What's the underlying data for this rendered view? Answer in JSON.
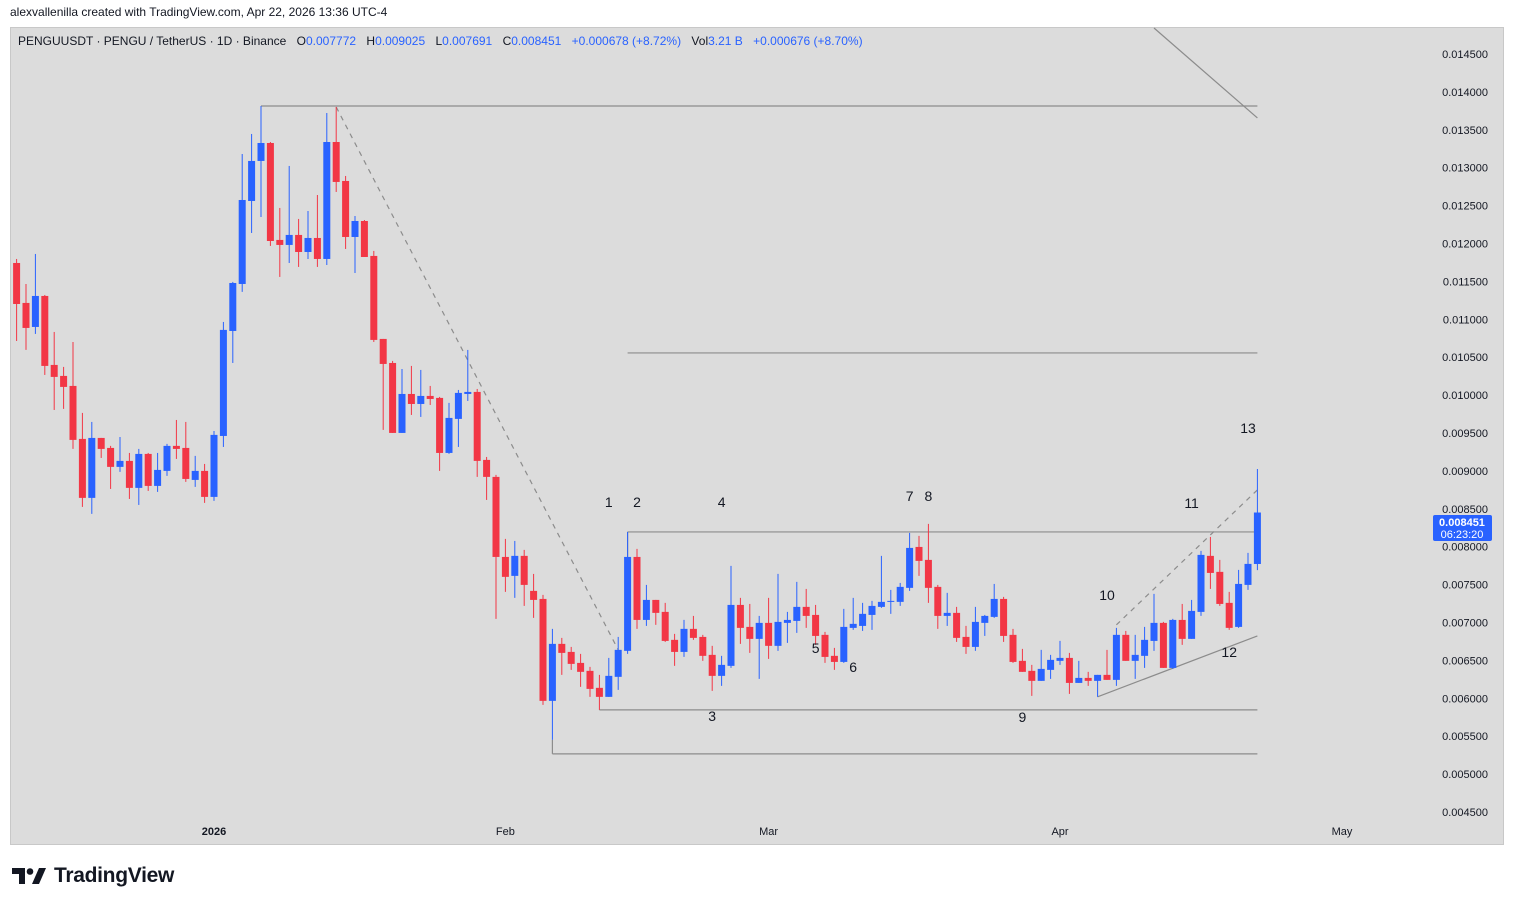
{
  "credit": "alexvallenilla created with TradingView.com, Apr 22, 2026 13:36 UTC-4",
  "legend": {
    "symbol": "PENGUUSDT · PENGU / TetherUS · 1D · Binance",
    "open_label": "O",
    "open": "0.007772",
    "high_label": "H",
    "high": "0.009025",
    "low_label": "L",
    "low": "0.007691",
    "close_label": "C",
    "close": "0.008451",
    "change": "+0.000678 (+8.72%)",
    "vol_label": "Vol",
    "vol": "3.21 B",
    "vol_change": "+0.000676 (+8.70%)"
  },
  "price_badge": {
    "price": "0.008451",
    "countdown": "06:23:20",
    "color": "#2962ff"
  },
  "logo": {
    "text": "TradingView"
  },
  "chart_data": {
    "type": "candlestick",
    "interval": "1D",
    "colors": {
      "up": "#2962ff",
      "down": "#f23645",
      "background": "#dcdcdc",
      "drawing": "#8c8c8c"
    },
    "ylim": [
      0.0043,
      0.0149
    ],
    "y_ticks": [
      "0.014500",
      "0.014000",
      "0.013500",
      "0.013000",
      "0.012500",
      "0.012000",
      "0.011500",
      "0.011000",
      "0.010500",
      "0.010000",
      "0.009500",
      "0.009000",
      "0.008500",
      "0.008000",
      "0.007500",
      "0.007000",
      "0.006500",
      "0.006000",
      "0.005500",
      "0.005000",
      "0.004500"
    ],
    "x_ticks": [
      {
        "label": "2026",
        "date": "2026-01-01"
      },
      {
        "label": "Feb",
        "date": "2026-02-01"
      },
      {
        "label": "Mar",
        "date": "2026-03-01"
      },
      {
        "label": "Apr",
        "date": "2026-04-01"
      },
      {
        "label": "May",
        "date": "2026-05-01"
      }
    ],
    "candles_columns": [
      "date",
      "open",
      "high",
      "low",
      "close"
    ],
    "candles": [
      [
        "2025-12-11",
        0.011743,
        0.011796,
        0.010714,
        0.011202
      ],
      [
        "2025-12-12",
        0.011216,
        0.011466,
        0.010596,
        0.010886
      ],
      [
        "2025-12-13",
        0.010899,
        0.011862,
        0.010807,
        0.011308
      ],
      [
        "2025-12-14",
        0.011308,
        0.011321,
        0.010266,
        0.010385
      ],
      [
        "2025-12-15",
        0.010398,
        0.010833,
        0.009804,
        0.01024
      ],
      [
        "2025-12-16",
        0.010253,
        0.010372,
        0.009818,
        0.010108
      ],
      [
        "2025-12-17",
        0.010121,
        0.010701,
        0.00929,
        0.009409
      ],
      [
        "2025-12-18",
        0.009422,
        0.009765,
        0.008525,
        0.008644
      ],
      [
        "2025-12-19",
        0.008644,
        0.009646,
        0.008433,
        0.009435
      ],
      [
        "2025-12-20",
        0.009435,
        0.009435,
        0.009171,
        0.00929
      ],
      [
        "2025-12-21",
        0.009303,
        0.00933,
        0.008762,
        0.009053
      ],
      [
        "2025-12-22",
        0.009053,
        0.009448,
        0.008987,
        0.009132
      ],
      [
        "2025-12-23",
        0.009132,
        0.009237,
        0.00863,
        0.008776
      ],
      [
        "2025-12-24",
        0.008776,
        0.00929,
        0.008551,
        0.009224
      ],
      [
        "2025-12-25",
        0.009224,
        0.009237,
        0.008736,
        0.008802
      ],
      [
        "2025-12-26",
        0.008802,
        0.009237,
        0.008723,
        0.009013
      ],
      [
        "2025-12-27",
        0.009,
        0.009356,
        0.008934,
        0.00933
      ],
      [
        "2025-12-28",
        0.00933,
        0.009672,
        0.009158,
        0.00929
      ],
      [
        "2025-12-29",
        0.009303,
        0.009646,
        0.008855,
        0.008894
      ],
      [
        "2025-12-30",
        0.008881,
        0.009198,
        0.008789,
        0.009
      ],
      [
        "2025-12-31",
        0.009,
        0.009092,
        0.008578,
        0.008657
      ],
      [
        "2026-01-01",
        0.008657,
        0.009527,
        0.008604,
        0.009475
      ],
      [
        "2026-01-02",
        0.009461,
        0.010965,
        0.009316,
        0.01086
      ],
      [
        "2026-01-03",
        0.010846,
        0.011493,
        0.010424,
        0.011479
      ],
      [
        "2026-01-04",
        0.011466,
        0.013181,
        0.011361,
        0.012574
      ],
      [
        "2026-01-05",
        0.012561,
        0.013445,
        0.012139,
        0.013089
      ],
      [
        "2026-01-06",
        0.013089,
        0.013814,
        0.01235,
        0.013326
      ],
      [
        "2026-01-07",
        0.013326,
        0.013339,
        0.011968,
        0.012033
      ],
      [
        "2026-01-08",
        0.012047,
        0.012469,
        0.011559,
        0.011981
      ],
      [
        "2026-01-09",
        0.011981,
        0.013023,
        0.011743,
        0.012113
      ],
      [
        "2026-01-10",
        0.012113,
        0.012324,
        0.011691,
        0.011888
      ],
      [
        "2026-01-11",
        0.011888,
        0.012429,
        0.011796,
        0.012073
      ],
      [
        "2026-01-12",
        0.012073,
        0.01264,
        0.011691,
        0.011796
      ],
      [
        "2026-01-13",
        0.011796,
        0.013722,
        0.011717,
        0.013339
      ],
      [
        "2026-01-14",
        0.013339,
        0.013801,
        0.01268,
        0.012812
      ],
      [
        "2026-01-15",
        0.012825,
        0.012891,
        0.011928,
        0.012086
      ],
      [
        "2026-01-16",
        0.012086,
        0.012363,
        0.011611,
        0.012297
      ],
      [
        "2026-01-17",
        0.012297,
        0.01231,
        0.011822,
        0.011822
      ],
      [
        "2026-01-18",
        0.011836,
        0.011902,
        0.010701,
        0.010728
      ],
      [
        "2026-01-19",
        0.010741,
        0.010741,
        0.009541,
        0.010411
      ],
      [
        "2026-01-20",
        0.010424,
        0.010451,
        0.009501,
        0.009501
      ],
      [
        "2026-01-21",
        0.009501,
        0.010345,
        0.009501,
        0.010015
      ],
      [
        "2026-01-22",
        0.010015,
        0.010385,
        0.009738,
        0.009883
      ],
      [
        "2026-01-23",
        0.009883,
        0.010332,
        0.009712,
        0.009989
      ],
      [
        "2026-01-24",
        0.009989,
        0.010121,
        0.00987,
        0.009949
      ],
      [
        "2026-01-25",
        0.009963,
        0.009976,
        0.009,
        0.009237
      ],
      [
        "2026-01-26",
        0.009237,
        0.009897,
        0.009224,
        0.009699
      ],
      [
        "2026-01-27",
        0.009686,
        0.010068,
        0.009316,
        0.010029
      ],
      [
        "2026-01-28",
        0.010015,
        0.010596,
        0.009923,
        0.010042
      ],
      [
        "2026-01-29",
        0.010042,
        0.010081,
        0.008921,
        0.009132
      ],
      [
        "2026-01-30",
        0.009145,
        0.009184,
        0.008617,
        0.008921
      ],
      [
        "2026-01-31",
        0.008921,
        0.008947,
        0.007048,
        0.007865
      ],
      [
        "2026-02-01",
        0.007865,
        0.008103,
        0.007404,
        0.007602
      ],
      [
        "2026-02-02",
        0.007615,
        0.008076,
        0.007325,
        0.007879
      ],
      [
        "2026-02-03",
        0.007879,
        0.007958,
        0.007219,
        0.007496
      ],
      [
        "2026-02-04",
        0.007417,
        0.007641,
        0.007061,
        0.007298
      ],
      [
        "2026-02-05",
        0.007311,
        0.007364,
        0.005913,
        0.005966
      ],
      [
        "2026-02-06",
        0.005966,
        0.006916,
        0.005452,
        0.006718
      ],
      [
        "2026-02-07",
        0.006718,
        0.006797,
        0.006309,
        0.006599
      ],
      [
        "2026-02-08",
        0.006612,
        0.006678,
        0.006375,
        0.006454
      ],
      [
        "2026-02-09",
        0.006467,
        0.006586,
        0.006151,
        0.006349
      ],
      [
        "2026-02-10",
        0.006362,
        0.006415,
        0.006019,
        0.006124
      ],
      [
        "2026-02-11",
        0.006138,
        0.006309,
        0.005847,
        0.006019
      ],
      [
        "2026-02-12",
        0.006019,
        0.006533,
        0.006019,
        0.006296
      ],
      [
        "2026-02-13",
        0.006283,
        0.00681,
        0.006111,
        0.006639
      ],
      [
        "2026-02-14",
        0.006626,
        0.008195,
        0.006586,
        0.007865
      ],
      [
        "2026-02-15",
        0.007865,
        0.007971,
        0.006916,
        0.007034
      ],
      [
        "2026-02-16",
        0.007034,
        0.007496,
        0.006955,
        0.007298
      ],
      [
        "2026-02-17",
        0.007298,
        0.007298,
        0.006969,
        0.007127
      ],
      [
        "2026-02-18",
        0.00714,
        0.007259,
        0.006744,
        0.006757
      ],
      [
        "2026-02-19",
        0.006771,
        0.00685,
        0.006428,
        0.006612
      ],
      [
        "2026-02-20",
        0.006612,
        0.007034,
        0.006546,
        0.006916
      ],
      [
        "2026-02-21",
        0.006916,
        0.007087,
        0.006771,
        0.006797
      ],
      [
        "2026-02-22",
        0.00681,
        0.006837,
        0.006494,
        0.00656
      ],
      [
        "2026-02-23",
        0.006573,
        0.006692,
        0.006098,
        0.006296
      ],
      [
        "2026-02-24",
        0.006296,
        0.00656,
        0.006164,
        0.006441
      ],
      [
        "2026-02-25",
        0.006428,
        0.007747,
        0.006401,
        0.007232
      ],
      [
        "2026-02-26",
        0.007232,
        0.007325,
        0.006718,
        0.006929
      ],
      [
        "2026-02-27",
        0.006942,
        0.007245,
        0.006599,
        0.006784
      ],
      [
        "2026-02-28",
        0.006784,
        0.007087,
        0.006256,
        0.006995
      ],
      [
        "2026-03-01",
        0.006995,
        0.007325,
        0.00652,
        0.006692
      ],
      [
        "2026-03-02",
        0.006692,
        0.007641,
        0.006626,
        0.007008
      ],
      [
        "2026-03-03",
        0.006995,
        0.00714,
        0.006731,
        0.007034
      ],
      [
        "2026-03-04",
        0.007021,
        0.007536,
        0.006863,
        0.007206
      ],
      [
        "2026-03-05",
        0.007206,
        0.007443,
        0.006929,
        0.007087
      ],
      [
        "2026-03-06",
        0.0071,
        0.007232,
        0.006705,
        0.006823
      ],
      [
        "2026-03-07",
        0.006837,
        0.006876,
        0.006467,
        0.006546
      ],
      [
        "2026-03-08",
        0.00656,
        0.006665,
        0.006375,
        0.00648
      ],
      [
        "2026-03-09",
        0.00648,
        0.00718,
        0.006467,
        0.006942
      ],
      [
        "2026-03-10",
        0.006929,
        0.007325,
        0.006903,
        0.006982
      ],
      [
        "2026-03-11",
        0.006955,
        0.007259,
        0.006889,
        0.007114
      ],
      [
        "2026-03-12",
        0.0071,
        0.007285,
        0.006903,
        0.007219
      ],
      [
        "2026-03-13",
        0.007206,
        0.007879,
        0.007193,
        0.007272
      ],
      [
        "2026-03-14",
        0.007272,
        0.00743,
        0.007114,
        0.007285
      ],
      [
        "2026-03-15",
        0.007272,
        0.007522,
        0.007219,
        0.00747
      ],
      [
        "2026-03-16",
        0.007457,
        0.008182,
        0.007417,
        0.007984
      ],
      [
        "2026-03-17",
        0.007997,
        0.008142,
        0.007615,
        0.007813
      ],
      [
        "2026-03-18",
        0.007826,
        0.008301,
        0.007259,
        0.007457
      ],
      [
        "2026-03-19",
        0.00747,
        0.007496,
        0.006916,
        0.007087
      ],
      [
        "2026-03-20",
        0.007087,
        0.007391,
        0.006955,
        0.007127
      ],
      [
        "2026-03-21",
        0.007127,
        0.007206,
        0.006744,
        0.006797
      ],
      [
        "2026-03-22",
        0.00681,
        0.006955,
        0.006586,
        0.006678
      ],
      [
        "2026-03-23",
        0.006678,
        0.007206,
        0.006626,
        0.007008
      ],
      [
        "2026-03-24",
        0.006995,
        0.0071,
        0.006823,
        0.007087
      ],
      [
        "2026-03-25",
        0.007074,
        0.007509,
        0.007061,
        0.007311
      ],
      [
        "2026-03-26",
        0.007311,
        0.007338,
        0.006744,
        0.006823
      ],
      [
        "2026-03-27",
        0.006837,
        0.006916,
        0.006467,
        0.00648
      ],
      [
        "2026-03-28",
        0.006494,
        0.006652,
        0.006349,
        0.006349
      ],
      [
        "2026-03-29",
        0.006362,
        0.006441,
        0.006032,
        0.00623
      ],
      [
        "2026-03-30",
        0.00623,
        0.006639,
        0.00623,
        0.006388
      ],
      [
        "2026-03-31",
        0.006375,
        0.006573,
        0.006256,
        0.006507
      ],
      [
        "2026-04-01",
        0.006494,
        0.006757,
        0.006441,
        0.006533
      ],
      [
        "2026-04-02",
        0.006533,
        0.006599,
        0.006058,
        0.006203
      ],
      [
        "2026-04-03",
        0.006203,
        0.006494,
        0.006203,
        0.006269
      ],
      [
        "2026-04-04",
        0.006269,
        0.006349,
        0.006164,
        0.00623
      ],
      [
        "2026-04-05",
        0.00623,
        0.006309,
        0.006019,
        0.006309
      ],
      [
        "2026-04-06",
        0.006309,
        0.006639,
        0.006243,
        0.006243
      ],
      [
        "2026-04-07",
        0.006243,
        0.006929,
        0.006164,
        0.006837
      ],
      [
        "2026-04-08",
        0.006837,
        0.006889,
        0.006494,
        0.006494
      ],
      [
        "2026-04-09",
        0.006494,
        0.006837,
        0.006256,
        0.006573
      ],
      [
        "2026-04-10",
        0.00656,
        0.006942,
        0.006401,
        0.006771
      ],
      [
        "2026-04-11",
        0.006757,
        0.007377,
        0.006626,
        0.006995
      ],
      [
        "2026-04-12",
        0.006995,
        0.007008,
        0.006401,
        0.006401
      ],
      [
        "2026-04-13",
        0.006401,
        0.007048,
        0.006388,
        0.007034
      ],
      [
        "2026-04-14",
        0.007034,
        0.007245,
        0.006705,
        0.006784
      ],
      [
        "2026-04-15",
        0.006784,
        0.007298,
        0.006784,
        0.007153
      ],
      [
        "2026-04-16",
        0.00714,
        0.007945,
        0.007087,
        0.007892
      ],
      [
        "2026-04-17",
        0.007879,
        0.008129,
        0.007443,
        0.007654
      ],
      [
        "2026-04-18",
        0.007668,
        0.007826,
        0.007219,
        0.007245
      ],
      [
        "2026-04-19",
        0.007259,
        0.007404,
        0.006903,
        0.006929
      ],
      [
        "2026-04-20",
        0.006942,
        0.007694,
        0.006929,
        0.007509
      ],
      [
        "2026-04-21",
        0.007496,
        0.007918,
        0.00743,
        0.007773
      ],
      [
        "2026-04-22",
        0.007772,
        0.009025,
        0.007691,
        0.008451
      ]
    ],
    "drawings": [
      {
        "kind": "horizontal",
        "style": "solid",
        "from": [
          "2026-01-06",
          0.013814
        ],
        "to": [
          "2026-04-22",
          0.013814
        ]
      },
      {
        "kind": "horizontal",
        "style": "solid",
        "from": [
          "2026-02-14",
          0.010556
        ],
        "to": [
          "2026-04-22",
          0.010556
        ]
      },
      {
        "kind": "horizontal",
        "style": "solid",
        "from": [
          "2026-02-14",
          0.008195
        ],
        "to": [
          "2026-04-22",
          0.008195
        ]
      },
      {
        "kind": "horizontal",
        "style": "solid",
        "from": [
          "2026-02-11",
          0.005847
        ],
        "to": [
          "2026-04-22",
          0.005847
        ]
      },
      {
        "kind": "horizontal",
        "style": "solid",
        "from": [
          "2026-02-06",
          0.005267
        ],
        "to": [
          "2026-04-22",
          0.005267
        ]
      },
      {
        "kind": "trend",
        "style": "solid",
        "from": [
          "2026-02-06",
          0.005452
        ],
        "to": [
          "2026-02-06",
          0.005267
        ]
      },
      {
        "kind": "trend",
        "style": "solid",
        "from": [
          "2026-02-14",
          0.008195
        ],
        "to": [
          "2026-02-14",
          0.007865
        ]
      },
      {
        "kind": "trend",
        "style": "dashed",
        "from": [
          "2026-01-14",
          0.013801
        ],
        "to": [
          "2026-02-13",
          0.00664
        ]
      },
      {
        "kind": "trend",
        "style": "solid",
        "from": [
          "2026-04-11",
          0.014843
        ],
        "to": [
          "2026-04-22",
          0.013656
        ]
      },
      {
        "kind": "trend",
        "style": "dashed",
        "from": [
          "2026-04-07",
          0.006969
        ],
        "to": [
          "2026-04-22",
          0.008749
        ]
      },
      {
        "kind": "trend",
        "style": "solid",
        "from": [
          "2026-04-05",
          0.006019
        ],
        "to": [
          "2026-04-22",
          0.006823
        ]
      }
    ],
    "wave_labels": [
      {
        "text": "1",
        "date": "2026-02-12",
        "price": 0.008525
      },
      {
        "text": "2",
        "date": "2026-02-15",
        "price": 0.008525
      },
      {
        "text": "3",
        "date": "2026-02-23",
        "price": 0.005702
      },
      {
        "text": "4",
        "date": "2026-02-24",
        "price": 0.008525
      },
      {
        "text": "5",
        "date": "2026-03-06",
        "price": 0.006599
      },
      {
        "text": "6",
        "date": "2026-03-10",
        "price": 0.006349
      },
      {
        "text": "7",
        "date": "2026-03-16",
        "price": 0.008604
      },
      {
        "text": "8",
        "date": "2026-03-18",
        "price": 0.008604
      },
      {
        "text": "9",
        "date": "2026-03-28",
        "price": 0.005689
      },
      {
        "text": "10",
        "date": "2026-04-06",
        "price": 0.007298
      },
      {
        "text": "11",
        "date": "2026-04-15",
        "price": 0.008512
      },
      {
        "text": "12",
        "date": "2026-04-19",
        "price": 0.006546
      },
      {
        "text": "13",
        "date": "2026-04-21",
        "price": 0.009501
      }
    ]
  }
}
